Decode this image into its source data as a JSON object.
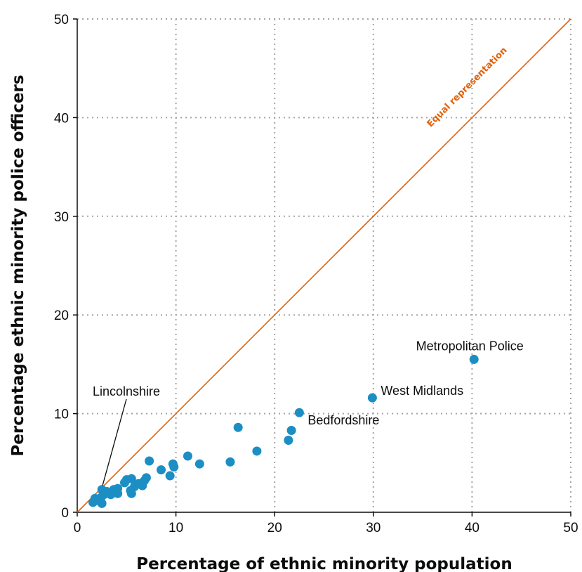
{
  "chart_data": {
    "type": "scatter",
    "xlabel": "Percentage of ethnic minority population",
    "ylabel": "Percentage ethnic minority police officers",
    "xlim": [
      0,
      50
    ],
    "ylim": [
      0,
      50
    ],
    "x_ticks": [
      "0",
      "10",
      "20",
      "30",
      "40",
      "50"
    ],
    "y_ticks": [
      "0",
      "10",
      "20",
      "30",
      "40",
      "50"
    ],
    "grid": true,
    "reference_line": {
      "label": "Equal representation",
      "from": [
        0,
        0
      ],
      "to": [
        50,
        50
      ],
      "color": "#e0630d"
    },
    "point_color": "#1c8ec4",
    "points": [
      {
        "x": 40.2,
        "y": 15.5,
        "label": "Metropolitan Police"
      },
      {
        "x": 29.9,
        "y": 11.6,
        "label": "West Midlands"
      },
      {
        "x": 22.5,
        "y": 10.1,
        "label": "Bedfordshire"
      },
      {
        "x": 2.5,
        "y": 2.3,
        "label": "Lincolnshire"
      },
      {
        "x": 21.7,
        "y": 8.3
      },
      {
        "x": 21.4,
        "y": 7.3
      },
      {
        "x": 16.3,
        "y": 8.6
      },
      {
        "x": 18.2,
        "y": 6.2
      },
      {
        "x": 15.5,
        "y": 5.1
      },
      {
        "x": 12.4,
        "y": 4.9
      },
      {
        "x": 11.2,
        "y": 5.7
      },
      {
        "x": 9.7,
        "y": 4.9
      },
      {
        "x": 9.8,
        "y": 4.6
      },
      {
        "x": 9.4,
        "y": 3.7
      },
      {
        "x": 8.5,
        "y": 4.3
      },
      {
        "x": 7.3,
        "y": 5.2
      },
      {
        "x": 7.0,
        "y": 3.5
      },
      {
        "x": 6.8,
        "y": 3.2
      },
      {
        "x": 6.6,
        "y": 2.7
      },
      {
        "x": 6.2,
        "y": 2.9
      },
      {
        "x": 5.8,
        "y": 2.6
      },
      {
        "x": 5.5,
        "y": 3.4
      },
      {
        "x": 5.4,
        "y": 2.2
      },
      {
        "x": 5.5,
        "y": 1.9
      },
      {
        "x": 5.0,
        "y": 3.3
      },
      {
        "x": 4.8,
        "y": 3.0
      },
      {
        "x": 4.1,
        "y": 2.4
      },
      {
        "x": 4.1,
        "y": 1.9
      },
      {
        "x": 3.7,
        "y": 2.3
      },
      {
        "x": 3.5,
        "y": 2.0
      },
      {
        "x": 3.4,
        "y": 1.8
      },
      {
        "x": 3.0,
        "y": 2.1
      },
      {
        "x": 2.7,
        "y": 1.8
      },
      {
        "x": 2.4,
        "y": 1.5
      },
      {
        "x": 2.5,
        "y": 0.9
      },
      {
        "x": 2.0,
        "y": 1.2
      },
      {
        "x": 1.8,
        "y": 1.4
      },
      {
        "x": 1.6,
        "y": 1.0
      }
    ]
  }
}
